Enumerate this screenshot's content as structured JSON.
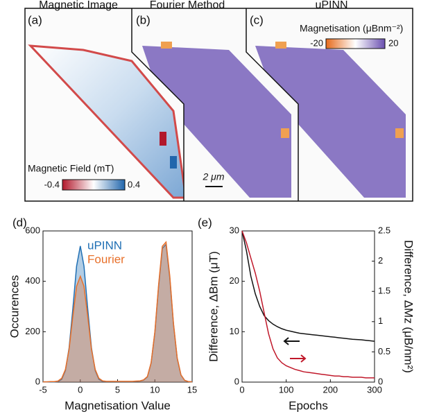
{
  "figure": {
    "panels": [
      {
        "tag": "(a)",
        "title": "Magnetic Image"
      },
      {
        "tag": "(b)",
        "title": "Fourier Method"
      },
      {
        "tag": "(c)",
        "title": "uPINN"
      }
    ],
    "field_colorbar": {
      "label": "Magnetic Field (mT)",
      "min": -0.4,
      "max": 0.4
    },
    "magnetisation_colorbar": {
      "label": "Magnetisation (μBnm⁻²)",
      "min": -20,
      "max": 20
    },
    "scale_bar": "2 μm"
  },
  "chart_data": [
    {
      "type": "area",
      "panel_label": "(d)",
      "x_label": "Magnetisation Value",
      "y_label": "Occurences",
      "x": [
        -5,
        -4.5,
        -4,
        -3.5,
        -3,
        -2.5,
        -2,
        -1.5,
        -1,
        -0.5,
        0,
        0.5,
        1,
        1.5,
        2,
        2.5,
        3,
        3.5,
        4,
        4.5,
        5,
        5.5,
        6,
        6.5,
        7,
        7.5,
        8,
        8.5,
        9,
        9.5,
        10,
        10.5,
        11,
        11.5,
        12,
        12.5,
        13,
        13.5,
        14,
        14.5,
        15
      ],
      "series": [
        {
          "name": "uPINN",
          "color": "#1f6fb4",
          "values": [
            1,
            1,
            1,
            1,
            2,
            11,
            46,
            135,
            290,
            460,
            540,
            460,
            290,
            135,
            46,
            11,
            3,
            2,
            2,
            2,
            2,
            2,
            2,
            2,
            2,
            3,
            4,
            8,
            21,
            76,
            197,
            377,
            530,
            547,
            414,
            230,
            94,
            28,
            7,
            2,
            1
          ]
        },
        {
          "name": "Fourier",
          "color": "#e8702a",
          "values": [
            1,
            1,
            2,
            2,
            4,
            15,
            50,
            130,
            260,
            380,
            420,
            380,
            260,
            130,
            50,
            15,
            5,
            3,
            3,
            3,
            3,
            3,
            3,
            3,
            3,
            4,
            5,
            9,
            22,
            77,
            200,
            384,
            539,
            556,
            421,
            234,
            96,
            29,
            7,
            2,
            1
          ]
        }
      ],
      "xlim": [
        -5,
        15
      ],
      "xticks": [
        -5,
        0,
        5,
        10,
        15
      ],
      "ylim": [
        0,
        600
      ],
      "yticks": [
        0,
        200,
        400,
        600
      ],
      "legend": "upper-center"
    },
    {
      "type": "line",
      "panel_label": "(e)",
      "x_label": "Epochs",
      "y_label": "Difference, ΔBm (μT)",
      "y2_label": "Difference, ΔMz (μB/nm²)",
      "x": [
        0,
        10,
        20,
        30,
        40,
        50,
        60,
        70,
        80,
        90,
        100,
        110,
        120,
        130,
        140,
        150,
        160,
        170,
        180,
        190,
        200,
        210,
        220,
        230,
        240,
        250,
        260,
        270,
        280,
        290,
        300
      ],
      "series": [
        {
          "color": "#111111",
          "values": [
            30,
            26,
            21,
            17.5,
            15,
            13.2,
            12.2,
            11.5,
            11,
            10.6,
            10.3,
            10.1,
            9.9,
            9.7,
            9.6,
            9.5,
            9.4,
            9.3,
            9.2,
            9.1,
            9.0,
            8.9,
            8.8,
            8.7,
            8.6,
            8.5,
            8.45,
            8.4,
            8.3,
            8.2,
            8.1
          ]
        },
        {
          "color": "#c0182a",
          "axis": "y2",
          "values": [
            2.5,
            2.3,
            2.05,
            1.8,
            1.5,
            1.15,
            0.8,
            0.55,
            0.4,
            0.32,
            0.27,
            0.24,
            0.21,
            0.19,
            0.17,
            0.16,
            0.15,
            0.14,
            0.13,
            0.12,
            0.11,
            0.1,
            0.1,
            0.09,
            0.09,
            0.08,
            0.08,
            0.08,
            0.07,
            0.07,
            0.07
          ]
        }
      ],
      "xlim": [
        0,
        300
      ],
      "xticks": [
        0,
        100,
        200,
        300
      ],
      "ylim": [
        0,
        30
      ],
      "yticks": [
        0,
        10,
        20,
        30
      ],
      "y2lim": [
        0,
        2.5
      ],
      "y2ticks": [
        0,
        0.5,
        1,
        1.5,
        2,
        2.5
      ]
    }
  ]
}
